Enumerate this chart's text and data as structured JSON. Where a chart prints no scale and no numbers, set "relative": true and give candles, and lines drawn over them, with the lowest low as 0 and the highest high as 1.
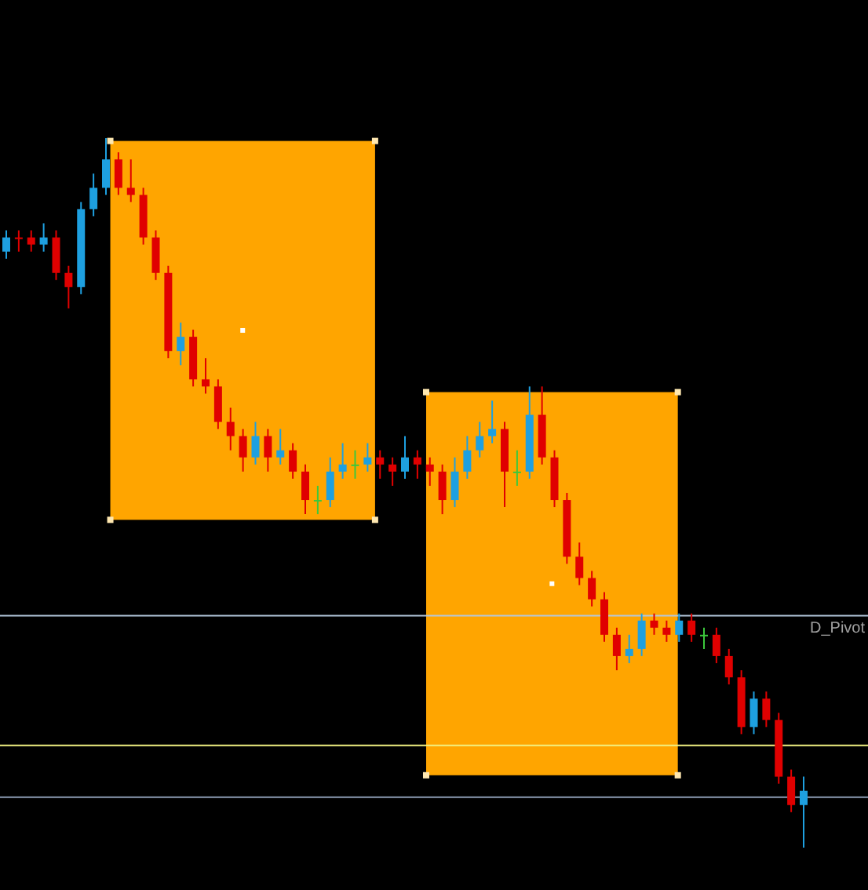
{
  "chart_data": {
    "type": "candlestick",
    "relative": true,
    "categories": [
      null,
      null,
      null,
      null,
      null,
      null,
      null,
      null,
      null,
      null,
      null,
      null,
      null,
      null,
      null,
      null,
      null,
      null,
      null,
      null,
      null,
      null,
      null,
      null,
      null,
      null,
      null,
      null,
      null,
      null,
      null,
      null,
      null,
      null,
      null,
      null,
      null,
      null,
      null,
      null,
      null,
      null,
      null,
      null,
      null,
      null,
      null,
      null,
      null,
      null,
      null,
      null,
      null,
      null,
      null,
      null,
      null,
      null,
      null,
      null,
      null,
      null,
      null,
      null,
      null
    ],
    "ohlc": [
      [
        0.84,
        0.87,
        0.83,
        0.86
      ],
      [
        0.86,
        0.87,
        0.84,
        0.86
      ],
      [
        0.86,
        0.87,
        0.84,
        0.85
      ],
      [
        0.85,
        0.88,
        0.84,
        0.86
      ],
      [
        0.86,
        0.87,
        0.8,
        0.81
      ],
      [
        0.81,
        0.82,
        0.76,
        0.79
      ],
      [
        0.79,
        0.91,
        0.78,
        0.9
      ],
      [
        0.9,
        0.95,
        0.89,
        0.93
      ],
      [
        0.93,
        1.0,
        0.92,
        0.97
      ],
      [
        0.97,
        0.98,
        0.92,
        0.93
      ],
      [
        0.93,
        0.97,
        0.91,
        0.92
      ],
      [
        0.92,
        0.93,
        0.85,
        0.86
      ],
      [
        0.86,
        0.87,
        0.8,
        0.81
      ],
      [
        0.81,
        0.82,
        0.69,
        0.7
      ],
      [
        0.7,
        0.74,
        0.68,
        0.72
      ],
      [
        0.72,
        0.73,
        0.65,
        0.66
      ],
      [
        0.66,
        0.69,
        0.64,
        0.65
      ],
      [
        0.65,
        0.66,
        0.59,
        0.6
      ],
      [
        0.6,
        0.62,
        0.56,
        0.58
      ],
      [
        0.58,
        0.59,
        0.53,
        0.55
      ],
      [
        0.55,
        0.6,
        0.54,
        0.58
      ],
      [
        0.58,
        0.59,
        0.53,
        0.55
      ],
      [
        0.55,
        0.59,
        0.54,
        0.56
      ],
      [
        0.56,
        0.57,
        0.52,
        0.53
      ],
      [
        0.53,
        0.54,
        0.47,
        0.49
      ],
      [
        0.49,
        0.51,
        0.47,
        0.49
      ],
      [
        0.49,
        0.55,
        0.48,
        0.53
      ],
      [
        0.53,
        0.57,
        0.52,
        0.54
      ],
      [
        0.54,
        0.56,
        0.52,
        0.54
      ],
      [
        0.54,
        0.57,
        0.53,
        0.55
      ],
      [
        0.55,
        0.56,
        0.52,
        0.54
      ],
      [
        0.54,
        0.55,
        0.51,
        0.53
      ],
      [
        0.53,
        0.58,
        0.52,
        0.55
      ],
      [
        0.55,
        0.56,
        0.52,
        0.54
      ],
      [
        0.54,
        0.55,
        0.51,
        0.53
      ],
      [
        0.53,
        0.54,
        0.47,
        0.49
      ],
      [
        0.49,
        0.55,
        0.48,
        0.53
      ],
      [
        0.53,
        0.58,
        0.52,
        0.56
      ],
      [
        0.56,
        0.6,
        0.55,
        0.58
      ],
      [
        0.58,
        0.63,
        0.57,
        0.59
      ],
      [
        0.59,
        0.6,
        0.48,
        0.53
      ],
      [
        0.53,
        0.56,
        0.51,
        0.53
      ],
      [
        0.53,
        0.65,
        0.52,
        0.61
      ],
      [
        0.61,
        0.65,
        0.54,
        0.55
      ],
      [
        0.55,
        0.56,
        0.48,
        0.49
      ],
      [
        0.49,
        0.5,
        0.4,
        0.41
      ],
      [
        0.41,
        0.43,
        0.37,
        0.38
      ],
      [
        0.38,
        0.39,
        0.34,
        0.35
      ],
      [
        0.35,
        0.36,
        0.29,
        0.3
      ],
      [
        0.3,
        0.31,
        0.25,
        0.27
      ],
      [
        0.27,
        0.3,
        0.26,
        0.28
      ],
      [
        0.28,
        0.33,
        0.27,
        0.32
      ],
      [
        0.32,
        0.33,
        0.3,
        0.31
      ],
      [
        0.31,
        0.32,
        0.29,
        0.3
      ],
      [
        0.3,
        0.33,
        0.29,
        0.32
      ],
      [
        0.32,
        0.33,
        0.29,
        0.3
      ],
      [
        0.3,
        0.31,
        0.28,
        0.3
      ],
      [
        0.3,
        0.31,
        0.26,
        0.27
      ],
      [
        0.27,
        0.28,
        0.23,
        0.24
      ],
      [
        0.24,
        0.25,
        0.16,
        0.17
      ],
      [
        0.17,
        0.22,
        0.16,
        0.21
      ],
      [
        0.21,
        0.22,
        0.17,
        0.18
      ],
      [
        0.18,
        0.19,
        0.09,
        0.1
      ],
      [
        0.1,
        0.11,
        0.05,
        0.06
      ],
      [
        0.06,
        0.1,
        0.0,
        0.08
      ]
    ],
    "colors": [
      "#1ea0e0",
      "#e00000",
      "#e00000",
      "#1ea0e0",
      "#e00000",
      "#e00000",
      "#1ea0e0",
      "#1ea0e0",
      "#1ea0e0",
      "#e00000",
      "#e00000",
      "#e00000",
      "#e00000",
      "#e00000",
      "#1ea0e0",
      "#e00000",
      "#e00000",
      "#e00000",
      "#e00000",
      "#e00000",
      "#1ea0e0",
      "#e00000",
      "#1ea0e0",
      "#e00000",
      "#e00000",
      "#3cc83c",
      "#1ea0e0",
      "#1ea0e0",
      "#3cc83c",
      "#1ea0e0",
      "#e00000",
      "#e00000",
      "#1ea0e0",
      "#e00000",
      "#e00000",
      "#e00000",
      "#1ea0e0",
      "#1ea0e0",
      "#1ea0e0",
      "#1ea0e0",
      "#e00000",
      "#3cc83c",
      "#1ea0e0",
      "#e00000",
      "#e00000",
      "#e00000",
      "#e00000",
      "#e00000",
      "#e00000",
      "#e00000",
      "#1ea0e0",
      "#1ea0e0",
      "#e00000",
      "#e00000",
      "#1ea0e0",
      "#e00000",
      "#3cc83c",
      "#e00000",
      "#e00000",
      "#e00000",
      "#1ea0e0",
      "#e00000",
      "#e00000",
      "#e00000",
      "#1ea0e0"
    ],
    "ref_lines": [
      {
        "axis": "y",
        "value": 0.327,
        "label": "D_Pivot",
        "color": "#b4c8dc"
      },
      {
        "axis": "y",
        "value": 0.144,
        "color": "#f0f080"
      },
      {
        "axis": "y",
        "value": 0.071,
        "color": "#8c9cb4"
      }
    ]
  }
}
